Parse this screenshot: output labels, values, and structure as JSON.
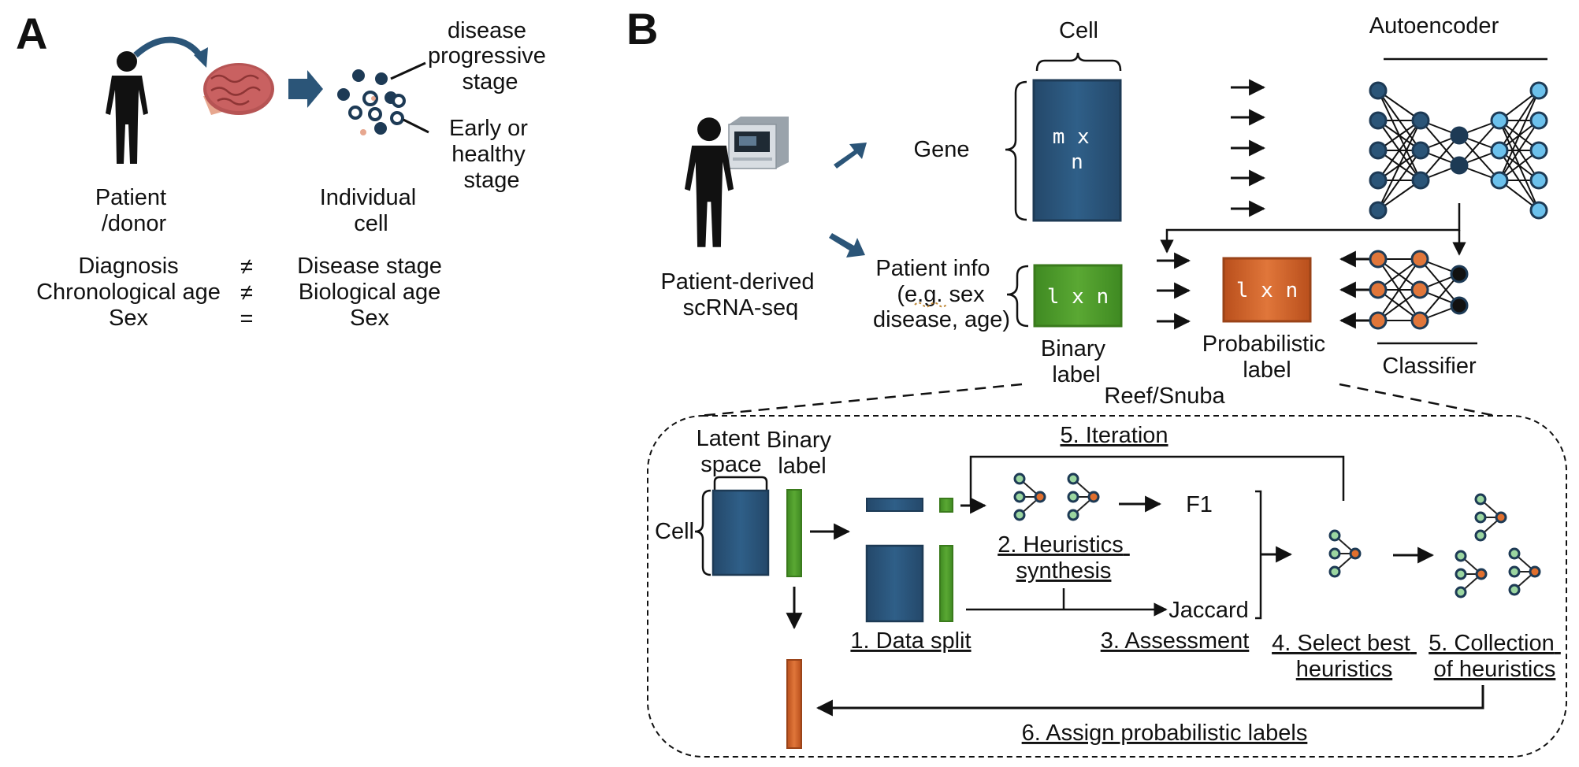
{
  "colors": {
    "green": "#4caf50",
    "blue": "#2f76c0",
    "red": "#e02020",
    "navy": "#2b5578",
    "orange": "#d9672a",
    "bar_green": "#4e9a2a",
    "node_light": "#6cc1ec",
    "node_dark": "#1d3a55",
    "heuristic_node": "#4d8a72",
    "heuristic_root": "#e06f2e"
  },
  "panel_a": {
    "letter": "A",
    "patient_label": [
      "Patient",
      "/donor"
    ],
    "cell_label": [
      "Individual",
      "cell"
    ],
    "disease_label": [
      "disease",
      "progressive",
      "stage"
    ],
    "early_label": [
      "Early or",
      "healthy",
      "stage"
    ],
    "comparisons": [
      {
        "left": "Diagnosis",
        "symbol": "≠",
        "right": "Disease stage"
      },
      {
        "left": "Chronological age",
        "symbol": "≠",
        "right": "Biological age"
      },
      {
        "left": "Sex",
        "symbol": "=",
        "right": "Sex"
      }
    ]
  },
  "panel_b": {
    "letter": "B",
    "source_label": [
      "Patient-derived",
      "scRNA-seq"
    ],
    "cell_header": "Cell",
    "gene_label": "Gene",
    "matrix_text": [
      "m x",
      "n"
    ],
    "patient_info": [
      "Patient info",
      "(e.g. sex",
      "disease, age)"
    ],
    "binary_matrix_text": "l x n",
    "binary_label": [
      "Binary",
      "label"
    ],
    "prob_matrix_text": "l x n",
    "prob_label": [
      "Probabilistic",
      "label"
    ],
    "autoencoder_label": "Autoencoder",
    "classifier_label": "Classifier",
    "reef_label": "Reef/Snuba"
  },
  "workflow": {
    "latent_space": [
      "Latent",
      "space"
    ],
    "binary_label": [
      "Binary",
      "label"
    ],
    "cell_label": "Cell",
    "iteration": "5. Iteration",
    "f1": "F1",
    "jaccard": "Jaccard",
    "synthesis": [
      "2. Heuristics",
      "synthesis"
    ],
    "data_split": "1. Data split",
    "assessment": "3. Assessment",
    "select_best": [
      "4. Select best",
      "heuristics"
    ],
    "collection": [
      "5. Collection",
      "of heuristics"
    ],
    "assign": "6. Assign probabilistic labels"
  }
}
